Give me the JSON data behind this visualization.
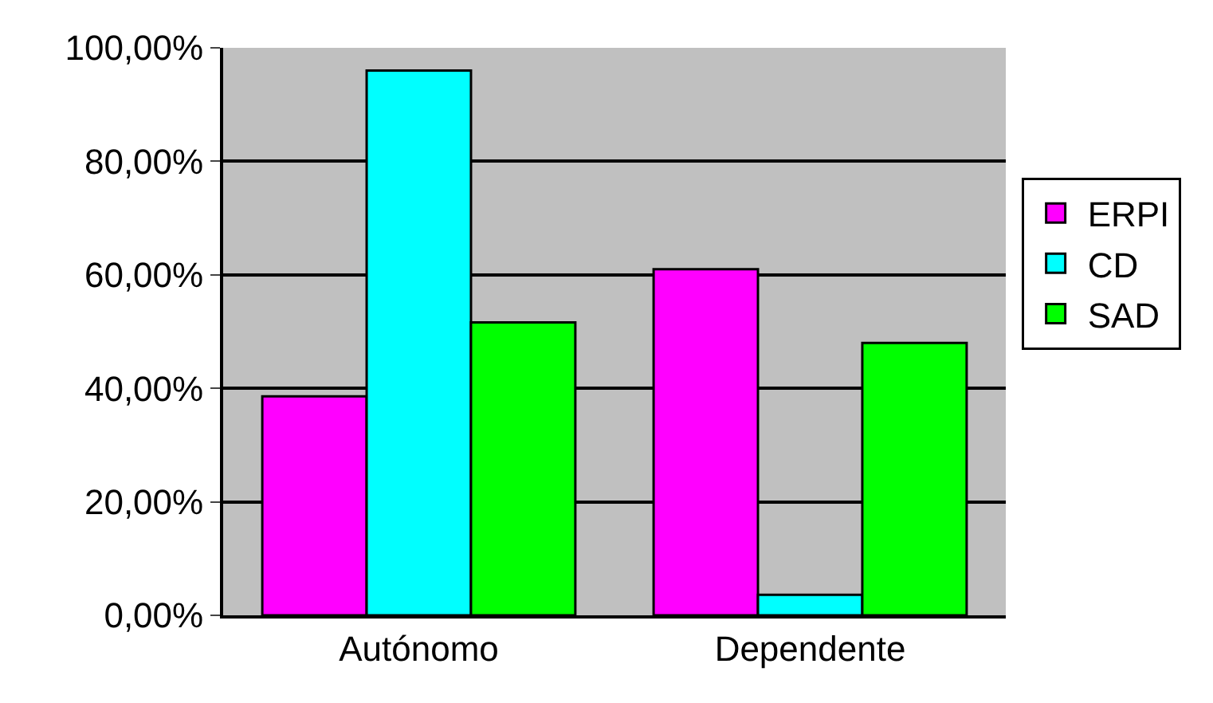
{
  "chart_data": {
    "type": "bar",
    "categories": [
      "Autónomo",
      "Dependente"
    ],
    "series": [
      {
        "name": "ERPI",
        "color": "#ff00ff",
        "values": [
          38.6,
          61
        ]
      },
      {
        "name": "CD",
        "color": "#00ffff",
        "values": [
          96,
          3.6
        ]
      },
      {
        "name": "SAD",
        "color": "#00ff00",
        "values": [
          51.6,
          48
        ]
      }
    ],
    "ylim": [
      0,
      100
    ],
    "yticks": [
      {
        "value": 0,
        "label": "0,00%"
      },
      {
        "value": 20,
        "label": "20,00%"
      },
      {
        "value": 40,
        "label": "40,00%"
      },
      {
        "value": 60,
        "label": "60,00%"
      },
      {
        "value": 80,
        "label": "80,00%"
      },
      {
        "value": 100,
        "label": "100,00%"
      }
    ],
    "grid": "y",
    "legend": "right"
  }
}
